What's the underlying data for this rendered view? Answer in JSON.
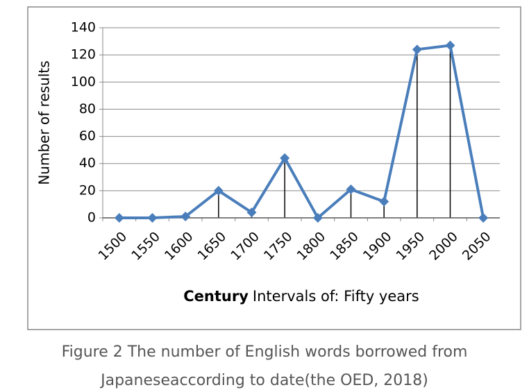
{
  "chart_data": {
    "type": "line",
    "ylabel": "Number of results",
    "xlabel": {
      "bold": "Century",
      "rest": "Intervals of: Fifty years"
    },
    "categories": [
      "1500",
      "1550",
      "1600",
      "1650",
      "1700",
      "1750",
      "1800",
      "1850",
      "1900",
      "1950",
      "2000",
      "2050"
    ],
    "values": [
      0,
      0,
      1,
      20,
      4,
      44,
      0,
      21,
      12,
      124,
      127,
      0
    ],
    "color": "#4a7ebb",
    "drop_lines": true,
    "ylim": [
      0,
      140
    ],
    "yticks": [
      0,
      20,
      40,
      60,
      80,
      100,
      120,
      140
    ],
    "grid": true
  },
  "caption": [
    "Figure 2 The number of English words borrowed from",
    "Japaneseaccording to date(the OED, 2018)"
  ]
}
